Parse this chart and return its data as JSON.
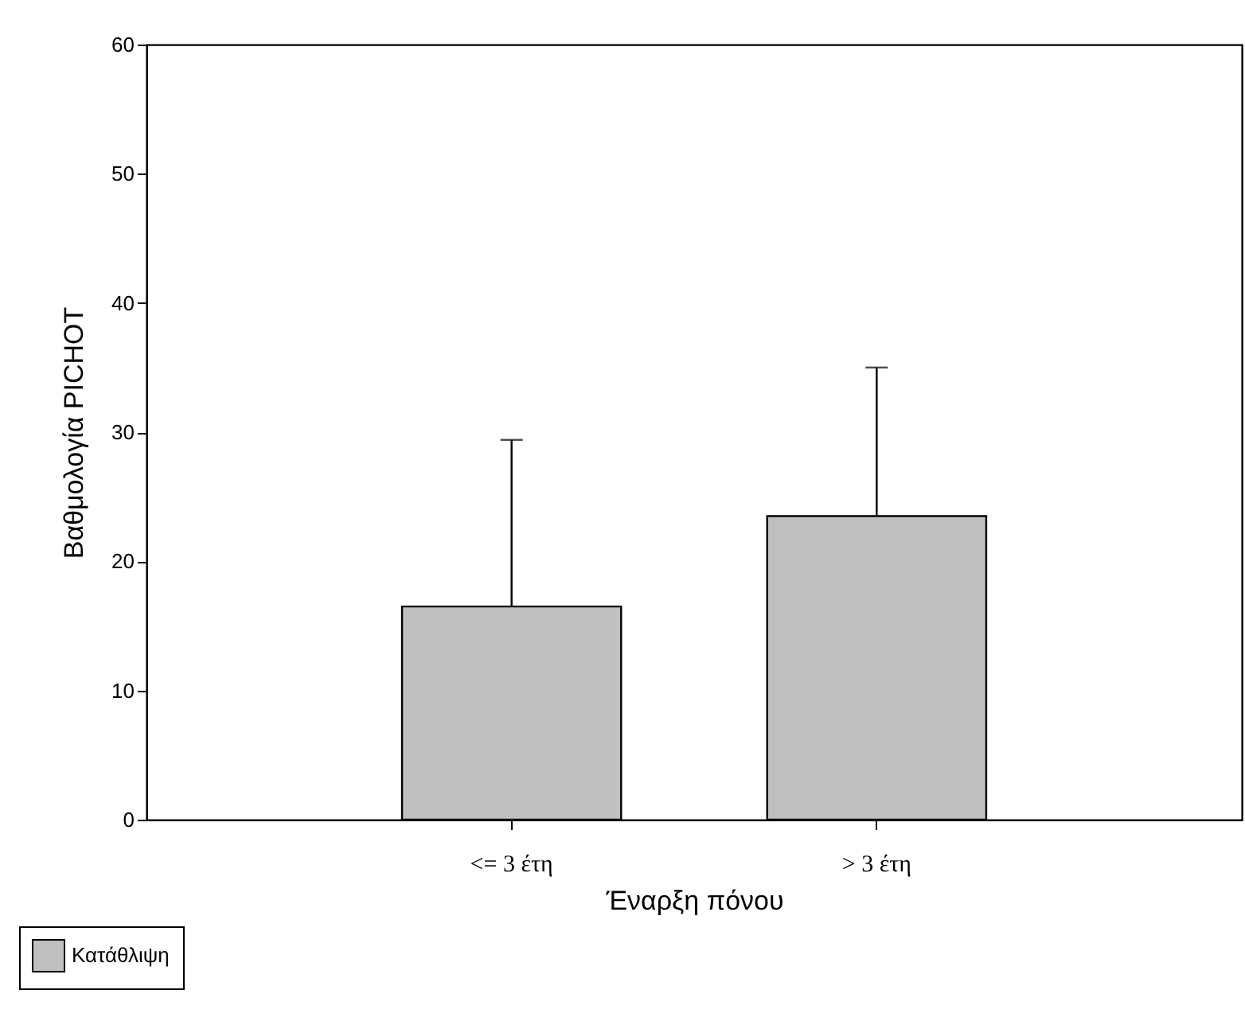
{
  "chart_data": {
    "type": "bar",
    "xlabel": "Έναρξη πόνου",
    "ylabel": "Βαθμολογία PICHOT",
    "categories": [
      "<= 3  έτη",
      "> 3 έτη"
    ],
    "series": [
      {
        "name": "Κατάθλιψη",
        "color": "#c0c0c0",
        "values": [
          16.5,
          23.5
        ],
        "errors": [
          [
            16.5,
            29.4
          ],
          [
            23.5,
            35.0
          ]
        ]
      }
    ],
    "ylim": [
      0,
      60
    ],
    "yticks": [
      0,
      10,
      20,
      30,
      40,
      50,
      60
    ],
    "grid": false,
    "legend": "bottom left"
  }
}
